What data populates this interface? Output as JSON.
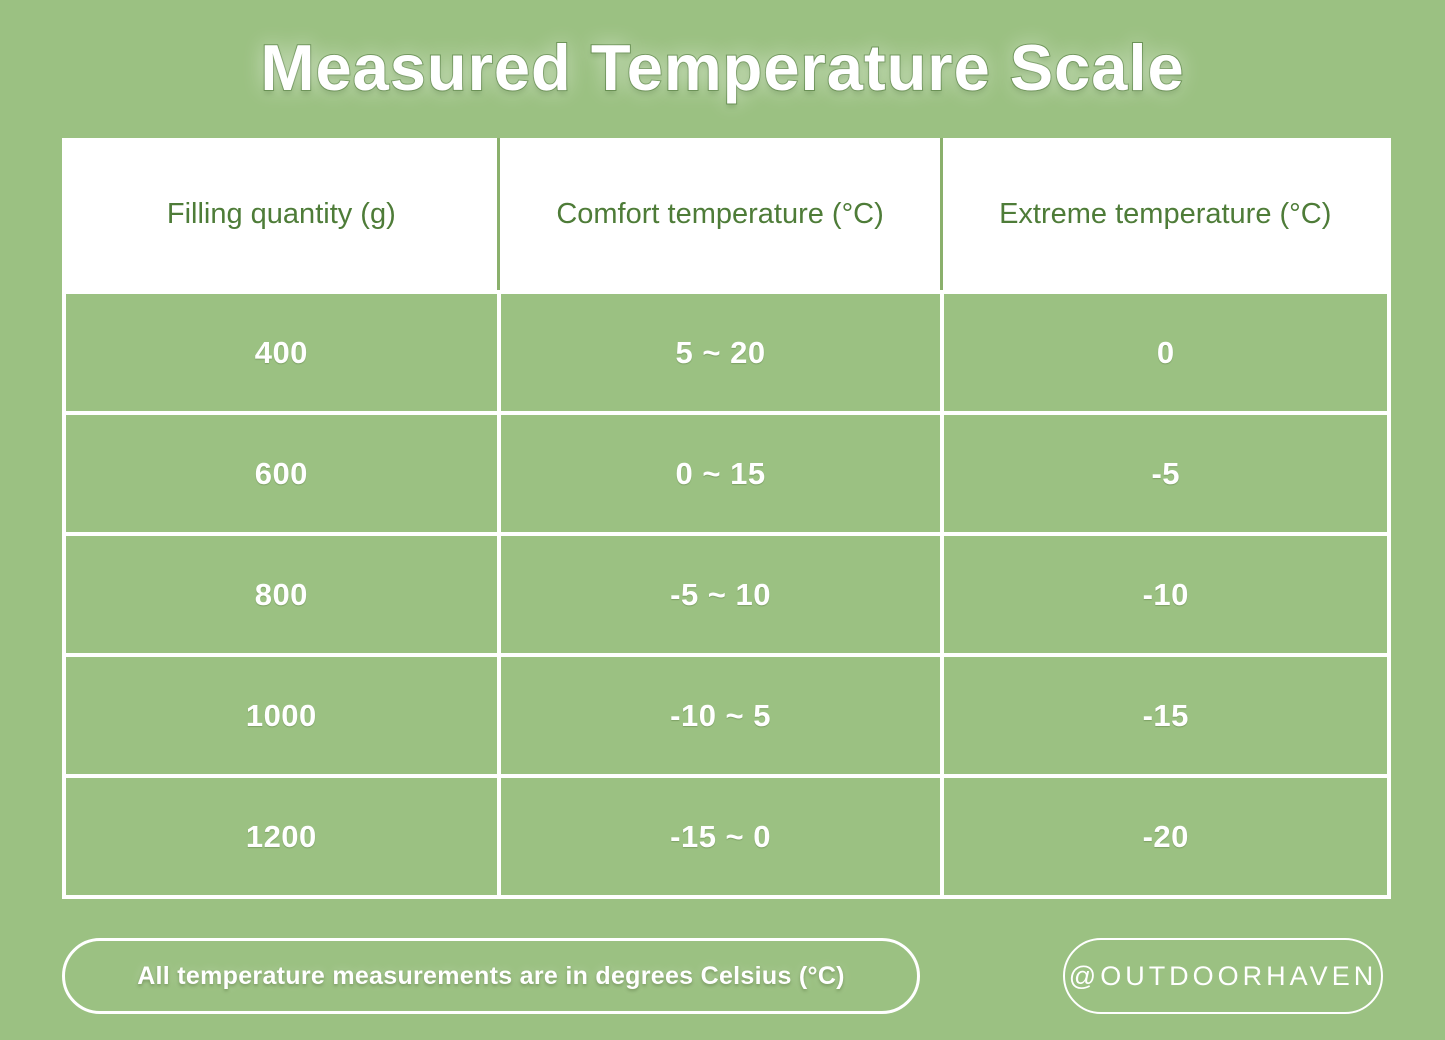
{
  "title": "Measured Temperature Scale",
  "chart_data": {
    "type": "table",
    "title": "Measured Temperature Scale",
    "columns": [
      "Filling quantity (g)",
      "Comfort temperature (°C)",
      "Extreme temperature (°C)"
    ],
    "rows": [
      [
        "400",
        "5 ~ 20",
        "0"
      ],
      [
        "600",
        "0 ~ 15",
        "-5"
      ],
      [
        "800",
        "-5 ~ 10",
        "-10"
      ],
      [
        "1000",
        "-10 ~ 5",
        "-15"
      ],
      [
        "1200",
        "-15 ~ 0",
        "-20"
      ]
    ]
  },
  "footer": {
    "note": "All temperature measurements are in degrees Celsius (°C)",
    "handle": "@OUTDOORHAVEN"
  },
  "colors": {
    "page_background": "#9bc182",
    "header_background": "#ffffff",
    "header_text": "#4e7c38",
    "header_divider": "#8ab06c",
    "grid_lines": "#ffffff",
    "cell_text": "#ffffff",
    "title_fill": "#ffffff",
    "title_outline": "#5e8a47"
  }
}
